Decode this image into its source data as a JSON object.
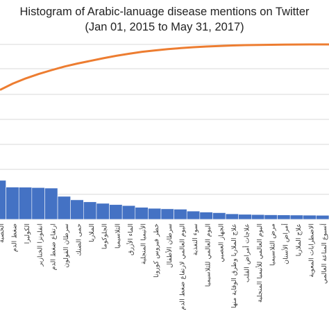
{
  "chart_data": {
    "type": "bar",
    "title": "Histogram of Arabic-lanuage disease mentions on Twitter",
    "subtitle": "(Jan 01, 2015 to May 31, 2017)",
    "xlabel": "",
    "ylabel": "",
    "grid": true,
    "legend": "none",
    "colors": {
      "bars": "#4472C4",
      "cumulative_line": "#ED7D31",
      "grid": "#D9D9D9"
    },
    "categories": [
      "الحصبة",
      "ضغط الدم",
      "الكوليرا",
      "انفلونزا الخنازير",
      "ارتفاع ضغط الدم",
      "سرطان القولون",
      "حمى الضنك",
      "الملاريا",
      "الجلوكوما",
      "الثلاسيميا",
      "الماء الأزرق",
      "الأنيميا المنجلية",
      "خطر فيروس كورونا",
      "سرطان الأطفال",
      "اليوم العالمي لارتفاع ضغط الدم",
      "سوء التغذية",
      "اليوم العالمي للثلاسيميا",
      "الجهاز العصبي",
      "علاج الملاريا وطرق الوقاية منها",
      "علاجات أمراض القلب",
      "اليوم العالمي للأنيميا المنجلية",
      "مرض الثلاسيميا",
      "أمراض الأسنان",
      "علاج الملاريا",
      "الاضطرابات المعوية",
      "أسبوع المناعة العالمي"
    ],
    "series": [
      {
        "type": "bar",
        "values": [
          1560,
          1290,
          1285,
          1270,
          1250,
          920,
          780,
          700,
          640,
          590,
          550,
          480,
          440,
          420,
          405,
          330,
          290,
          265,
          220,
          200,
          190,
          180,
          175,
          170,
          165,
          160
        ]
      },
      {
        "type": "line",
        "values": [
          0.74,
          0.776,
          0.806,
          0.831,
          0.853,
          0.874,
          0.891,
          0.906,
          0.921,
          0.935,
          0.947,
          0.958,
          0.966,
          0.973,
          0.979,
          0.984,
          0.988,
          0.991,
          0.994,
          0.996,
          0.997,
          0.998,
          0.999,
          0.9995,
          1.0,
          1.0
        ]
      }
    ]
  }
}
